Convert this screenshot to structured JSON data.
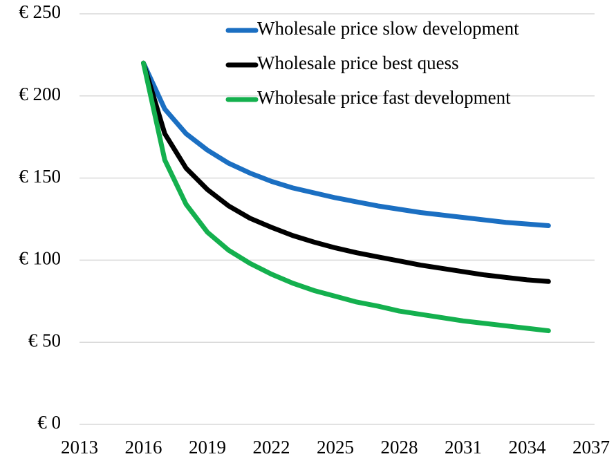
{
  "chart_data": {
    "type": "line",
    "x": [
      2016,
      2017,
      2018,
      2019,
      2020,
      2021,
      2022,
      2023,
      2024,
      2025,
      2026,
      2027,
      2028,
      2029,
      2030,
      2031,
      2032,
      2033,
      2034,
      2035
    ],
    "series": [
      {
        "name": "Wholesale price slow development",
        "color": "#1b6fc2",
        "values": [
          220,
          192,
          177,
          167,
          159,
          153,
          148,
          144,
          141,
          138,
          135.5,
          133,
          131,
          129,
          127.5,
          126,
          124.5,
          123,
          122,
          121
        ]
      },
      {
        "name": "Wholesale price best quess",
        "color": "#000000",
        "values": [
          220,
          177,
          156,
          143,
          133,
          125.5,
          120,
          115,
          111,
          107.5,
          104.5,
          102,
          99.5,
          97,
          95,
          93,
          91,
          89.5,
          88,
          87
        ]
      },
      {
        "name": "Wholesale price fast development",
        "color": "#14b04e",
        "values": [
          220,
          161,
          134,
          117,
          106,
          98,
          91.5,
          86,
          81.5,
          78,
          74.5,
          72,
          69,
          67,
          65,
          63,
          61.5,
          60,
          58.5,
          57
        ]
      }
    ],
    "xlim": [
      2013,
      2037
    ],
    "xticks": [
      2013,
      2016,
      2019,
      2022,
      2025,
      2028,
      2031,
      2034,
      2037
    ],
    "ylim": [
      0,
      250
    ],
    "yticks": [
      {
        "value": 0,
        "label": "€ 0"
      },
      {
        "value": 50,
        "label": "€ 50"
      },
      {
        "value": 100,
        "label": "€ 100"
      },
      {
        "value": 150,
        "label": "€ 150"
      },
      {
        "value": 200,
        "label": "€ 200"
      },
      {
        "value": 250,
        "label": "€ 250"
      }
    ],
    "grid": true,
    "legend": "top-right"
  }
}
